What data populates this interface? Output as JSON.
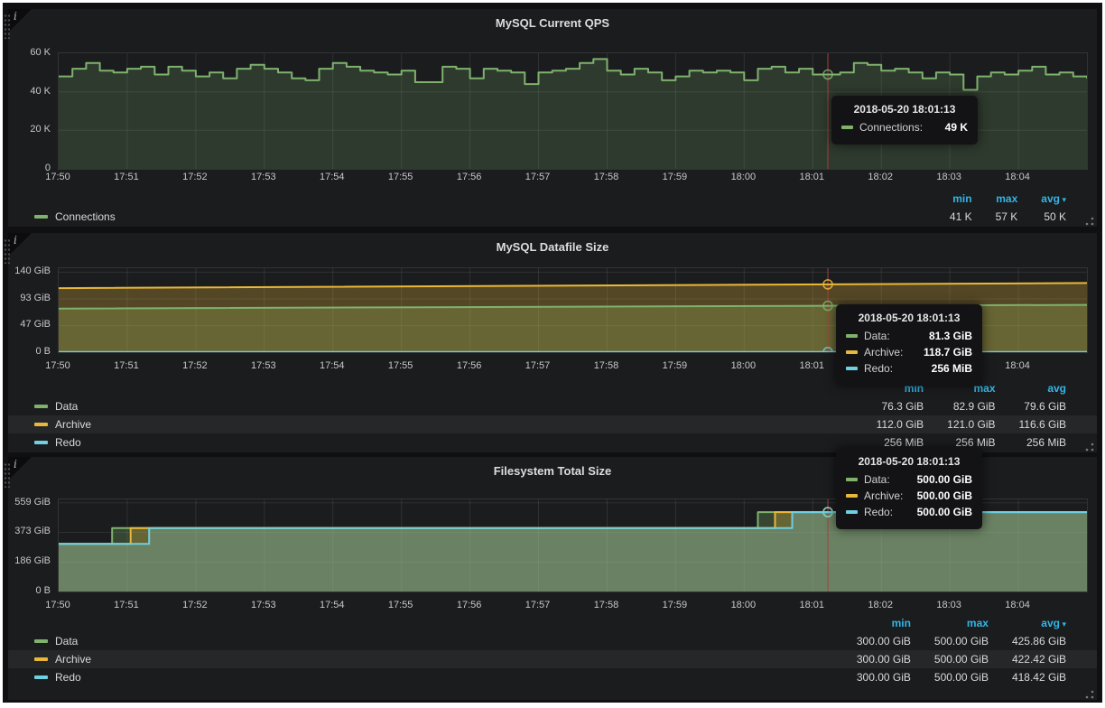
{
  "colors": {
    "green": "#7eb26d",
    "yellow": "#eab839",
    "blue": "#6ed0e0",
    "legend_header": "#33b5e5",
    "crosshair": "#b23c3c"
  },
  "chart_data": [
    {
      "type": "line",
      "title": "MySQL Current QPS",
      "ylim": [
        0,
        60000
      ],
      "y_ticks": [
        {
          "v": 0,
          "label": "0"
        },
        {
          "v": 20000,
          "label": "20 K"
        },
        {
          "v": 40000,
          "label": "40 K"
        },
        {
          "v": 60000,
          "label": "60 K"
        }
      ],
      "x_ticks": [
        "17:50",
        "17:51",
        "17:52",
        "17:53",
        "17:54",
        "17:55",
        "17:56",
        "17:57",
        "17:58",
        "17:59",
        "18:00",
        "18:01",
        "18:02",
        "18:03",
        "18:04"
      ],
      "x_minutes": 15,
      "grid": true,
      "legend_position": "bottom",
      "crosshair_minutes": 11.22,
      "series": [
        {
          "name": "Connections",
          "color": "#7eb26d",
          "interp": "step",
          "fill_opacity": 0.2,
          "interval_sec": 12,
          "values": [
            48000,
            52000,
            55000,
            51000,
            50000,
            52000,
            53000,
            49000,
            53000,
            51000,
            48000,
            50000,
            47000,
            52000,
            54000,
            52000,
            50000,
            47000,
            46000,
            52000,
            55000,
            53000,
            51000,
            50000,
            49000,
            51000,
            45000,
            45000,
            53000,
            52000,
            47000,
            52000,
            51000,
            50000,
            44000,
            50000,
            51000,
            52000,
            55000,
            57000,
            51000,
            49000,
            52000,
            50000,
            46000,
            48000,
            51000,
            50000,
            51000,
            50000,
            46000,
            52000,
            53000,
            50000,
            52000,
            49000,
            49000,
            50000,
            55000,
            54000,
            51000,
            52000,
            50000,
            47000,
            50000,
            49000,
            41000,
            48000,
            50000,
            49000,
            51000,
            53000,
            49000,
            50000,
            48000,
            47000
          ]
        }
      ],
      "markers": [
        {
          "color": "#7eb26d",
          "value": 49000
        }
      ],
      "legend": {
        "headers": [
          "min",
          "max",
          "avg"
        ],
        "avg_caret": true,
        "rows": [
          {
            "label": "Connections",
            "color": "#7eb26d",
            "min": "41 K",
            "max": "57 K",
            "avg": "50 K"
          }
        ]
      },
      "tooltip": {
        "time": "2018-05-20 18:01:13",
        "rows": [
          {
            "label": "Connections:",
            "color": "#7eb26d",
            "value": "49 K"
          }
        ]
      }
    },
    {
      "type": "line",
      "title": "MySQL Datafile Size",
      "ylim": [
        0,
        147
      ],
      "y_ticks": [
        {
          "v": 0,
          "label": "0 B"
        },
        {
          "v": 46.67,
          "label": "47 GiB"
        },
        {
          "v": 93.33,
          "label": "93 GiB"
        },
        {
          "v": 140,
          "label": "140 GiB"
        }
      ],
      "x_ticks": [
        "17:50",
        "17:51",
        "17:52",
        "17:53",
        "17:54",
        "17:55",
        "17:56",
        "17:57",
        "17:58",
        "17:59",
        "18:00",
        "18:01",
        "18:02",
        "18:03",
        "18:04"
      ],
      "x_minutes": 15,
      "grid": true,
      "legend_position": "bottom",
      "crosshair_minutes": 11.22,
      "series": [
        {
          "name": "Data",
          "color": "#7eb26d",
          "interp": "linear",
          "fill_opacity": 0.28,
          "points": [
            [
              0,
              76.3
            ],
            [
              11.22,
              81.3
            ],
            [
              15,
              82.9
            ]
          ]
        },
        {
          "name": "Archive",
          "color": "#eab839",
          "interp": "linear",
          "fill_opacity": 0.28,
          "points": [
            [
              0,
              112.0
            ],
            [
              11.22,
              118.7
            ],
            [
              15,
              121.0
            ]
          ]
        },
        {
          "name": "Redo",
          "color": "#6ed0e0",
          "interp": "linear",
          "fill_opacity": 0.28,
          "points": [
            [
              0,
              0.25
            ],
            [
              15,
              0.25
            ]
          ]
        }
      ],
      "markers": [
        {
          "color": "#7eb26d",
          "value": 81.3
        },
        {
          "color": "#eab839",
          "value": 118.7
        },
        {
          "color": "#6ed0e0",
          "value": 0.25
        }
      ],
      "legend": {
        "headers": [
          "min",
          "max",
          "avg"
        ],
        "avg_caret": false,
        "rows": [
          {
            "label": "Data",
            "color": "#7eb26d",
            "min": "76.3 GiB",
            "max": "82.9 GiB",
            "avg": "79.6 GiB"
          },
          {
            "label": "Archive",
            "color": "#eab839",
            "min": "112.0 GiB",
            "max": "121.0 GiB",
            "avg": "116.6 GiB"
          },
          {
            "label": "Redo",
            "color": "#6ed0e0",
            "min": "256 MiB",
            "max": "256 MiB",
            "avg": "256 MiB"
          }
        ]
      },
      "tooltip": {
        "time": "2018-05-20 18:01:13",
        "rows": [
          {
            "label": "Data:",
            "color": "#7eb26d",
            "value": "81.3 GiB"
          },
          {
            "label": "Archive:",
            "color": "#eab839",
            "value": "118.7 GiB"
          },
          {
            "label": "Redo:",
            "color": "#6ed0e0",
            "value": "256 MiB"
          }
        ]
      }
    },
    {
      "type": "line",
      "title": "Filesystem Total Size",
      "ylim": [
        0,
        580
      ],
      "y_ticks": [
        {
          "v": 0,
          "label": "0 B"
        },
        {
          "v": 186.33,
          "label": "186 GiB"
        },
        {
          "v": 372.67,
          "label": "373 GiB"
        },
        {
          "v": 559,
          "label": "559 GiB"
        }
      ],
      "x_ticks": [
        "17:50",
        "17:51",
        "17:52",
        "17:53",
        "17:54",
        "17:55",
        "17:56",
        "17:57",
        "17:58",
        "17:59",
        "18:00",
        "18:01",
        "18:02",
        "18:03",
        "18:04"
      ],
      "x_minutes": 15,
      "grid": true,
      "legend_position": "bottom",
      "crosshair_minutes": 11.22,
      "series": [
        {
          "name": "Data",
          "color": "#7eb26d",
          "interp": "step",
          "fill_opacity": 0.28,
          "points": [
            [
              0,
              300
            ],
            [
              0.78,
              300
            ],
            [
              0.78,
              400
            ],
            [
              10.2,
              400
            ],
            [
              10.2,
              500
            ],
            [
              15,
              500
            ]
          ]
        },
        {
          "name": "Archive",
          "color": "#eab839",
          "interp": "step",
          "fill_opacity": 0.28,
          "points": [
            [
              0,
              300
            ],
            [
              1.05,
              300
            ],
            [
              1.05,
              400
            ],
            [
              10.45,
              400
            ],
            [
              10.45,
              500
            ],
            [
              15,
              500
            ]
          ]
        },
        {
          "name": "Redo",
          "color": "#6ed0e0",
          "interp": "step",
          "fill_opacity": 0.28,
          "points": [
            [
              0,
              300
            ],
            [
              1.32,
              300
            ],
            [
              1.32,
              400
            ],
            [
              10.7,
              400
            ],
            [
              10.7,
              500
            ],
            [
              15,
              500
            ]
          ]
        }
      ],
      "markers": [
        {
          "color": "#7eb26d",
          "value": 500
        },
        {
          "color": "#eab839",
          "value": 500
        },
        {
          "color": "#6ed0e0",
          "value": 500
        }
      ],
      "legend": {
        "headers": [
          "min",
          "max",
          "avg"
        ],
        "avg_caret": true,
        "rows": [
          {
            "label": "Data",
            "color": "#7eb26d",
            "min": "300.00 GiB",
            "max": "500.00 GiB",
            "avg": "425.86 GiB"
          },
          {
            "label": "Archive",
            "color": "#eab839",
            "min": "300.00 GiB",
            "max": "500.00 GiB",
            "avg": "422.42 GiB"
          },
          {
            "label": "Redo",
            "color": "#6ed0e0",
            "min": "300.00 GiB",
            "max": "500.00 GiB",
            "avg": "418.42 GiB"
          }
        ]
      },
      "tooltip": {
        "time": "2018-05-20 18:01:13",
        "rows": [
          {
            "label": "Data:",
            "color": "#7eb26d",
            "value": "500.00 GiB"
          },
          {
            "label": "Archive:",
            "color": "#eab839",
            "value": "500.00 GiB"
          },
          {
            "label": "Redo:",
            "color": "#6ed0e0",
            "value": "500.00 GiB"
          }
        ]
      }
    }
  ]
}
